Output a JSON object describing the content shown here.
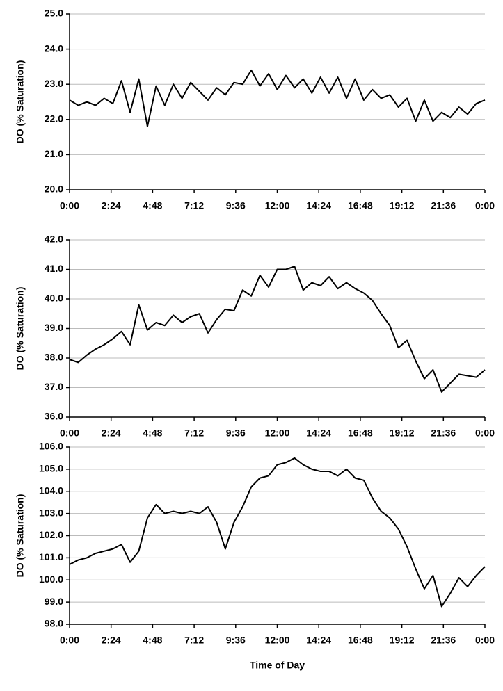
{
  "chart_data": [
    {
      "type": "line",
      "ylabel": "DO (% Saturation)",
      "color": "#000000",
      "grid": true,
      "x": [
        0,
        30,
        60,
        90,
        120,
        150,
        180,
        210,
        240,
        270,
        300,
        330,
        360,
        390,
        420,
        450,
        480,
        510,
        540,
        570,
        600,
        630,
        660,
        690,
        720,
        750,
        780,
        810,
        840,
        870,
        900,
        930,
        960,
        990,
        1020,
        1050,
        1080,
        1110,
        1140,
        1170,
        1200,
        1230,
        1260,
        1290,
        1320,
        1350,
        1380,
        1410,
        1440
      ],
      "values": [
        22.55,
        22.4,
        22.5,
        22.4,
        22.6,
        22.45,
        23.1,
        22.2,
        23.15,
        21.8,
        22.95,
        22.4,
        23.0,
        22.6,
        23.05,
        22.8,
        22.55,
        22.9,
        22.7,
        23.05,
        23.0,
        23.4,
        22.95,
        23.3,
        22.85,
        23.25,
        22.9,
        23.15,
        22.75,
        23.2,
        22.75,
        23.2,
        22.6,
        23.15,
        22.55,
        22.85,
        22.6,
        22.7,
        22.35,
        22.6,
        21.95,
        22.55,
        21.95,
        22.2,
        22.05,
        22.35,
        22.15,
        22.45,
        22.55
      ],
      "xlim": [
        0,
        1440
      ],
      "xticks": [
        {
          "value": 0,
          "label": "0:00"
        },
        {
          "value": 144,
          "label": "2:24"
        },
        {
          "value": 288,
          "label": "4:48"
        },
        {
          "value": 432,
          "label": "7:12"
        },
        {
          "value": 576,
          "label": "9:36"
        },
        {
          "value": 720,
          "label": "12:00"
        },
        {
          "value": 864,
          "label": "14:24"
        },
        {
          "value": 1008,
          "label": "16:48"
        },
        {
          "value": 1152,
          "label": "19:12"
        },
        {
          "value": 1296,
          "label": "21:36"
        },
        {
          "value": 1440,
          "label": "0:00"
        }
      ],
      "ylim": [
        20,
        25
      ],
      "yticks": [
        {
          "value": 20,
          "label": "20.0"
        },
        {
          "value": 21,
          "label": "21.0"
        },
        {
          "value": 22,
          "label": "22.0"
        },
        {
          "value": 23,
          "label": "23.0"
        },
        {
          "value": 24,
          "label": "24.0"
        },
        {
          "value": 25,
          "label": "25.0"
        }
      ]
    },
    {
      "type": "line",
      "ylabel": "DO (% Saturation)",
      "color": "#000000",
      "grid": true,
      "x": [
        0,
        30,
        60,
        90,
        120,
        150,
        180,
        210,
        240,
        270,
        300,
        330,
        360,
        390,
        420,
        450,
        480,
        510,
        540,
        570,
        600,
        630,
        660,
        690,
        720,
        750,
        780,
        810,
        840,
        870,
        900,
        930,
        960,
        990,
        1020,
        1050,
        1080,
        1110,
        1140,
        1170,
        1200,
        1230,
        1260,
        1290,
        1320,
        1350,
        1380,
        1410,
        1440
      ],
      "values": [
        37.95,
        37.85,
        38.1,
        38.3,
        38.45,
        38.65,
        38.9,
        38.45,
        39.8,
        38.95,
        39.2,
        39.1,
        39.45,
        39.2,
        39.4,
        39.5,
        38.85,
        39.3,
        39.65,
        39.6,
        40.3,
        40.1,
        40.8,
        40.4,
        41.0,
        41.0,
        41.1,
        40.3,
        40.55,
        40.45,
        40.75,
        40.35,
        40.55,
        40.35,
        40.2,
        39.95,
        39.5,
        39.1,
        38.35,
        38.6,
        37.9,
        37.3,
        37.6,
        36.85,
        37.15,
        37.45,
        37.4,
        37.35,
        37.6
      ],
      "xlim": [
        0,
        1440
      ],
      "xticks": [
        {
          "value": 0,
          "label": "0:00"
        },
        {
          "value": 144,
          "label": "2:24"
        },
        {
          "value": 288,
          "label": "4:48"
        },
        {
          "value": 432,
          "label": "7:12"
        },
        {
          "value": 576,
          "label": "9:36"
        },
        {
          "value": 720,
          "label": "12:00"
        },
        {
          "value": 864,
          "label": "14:24"
        },
        {
          "value": 1008,
          "label": "16:48"
        },
        {
          "value": 1152,
          "label": "19:12"
        },
        {
          "value": 1296,
          "label": "21:36"
        },
        {
          "value": 1440,
          "label": "0:00"
        }
      ],
      "ylim": [
        36,
        42
      ],
      "yticks": [
        {
          "value": 36,
          "label": "36.0"
        },
        {
          "value": 37,
          "label": "37.0"
        },
        {
          "value": 38,
          "label": "38.0"
        },
        {
          "value": 39,
          "label": "39.0"
        },
        {
          "value": 40,
          "label": "40.0"
        },
        {
          "value": 41,
          "label": "41.0"
        },
        {
          "value": 42,
          "label": "42.0"
        }
      ]
    },
    {
      "type": "line",
      "ylabel": "DO (% Saturation)",
      "xlabel": "Time of Day",
      "color": "#000000",
      "grid": true,
      "x": [
        0,
        30,
        60,
        90,
        120,
        150,
        180,
        210,
        240,
        270,
        300,
        330,
        360,
        390,
        420,
        450,
        480,
        510,
        540,
        570,
        600,
        630,
        660,
        690,
        720,
        750,
        780,
        810,
        840,
        870,
        900,
        930,
        960,
        990,
        1020,
        1050,
        1080,
        1110,
        1140,
        1170,
        1200,
        1230,
        1260,
        1290,
        1320,
        1350,
        1380,
        1410,
        1440
      ],
      "values": [
        100.7,
        100.9,
        101.0,
        101.2,
        101.3,
        101.4,
        101.6,
        100.8,
        101.3,
        102.8,
        103.4,
        103.0,
        103.1,
        103.0,
        103.1,
        103.0,
        103.3,
        102.6,
        101.4,
        102.6,
        103.3,
        104.2,
        104.6,
        104.7,
        105.2,
        105.3,
        105.5,
        105.2,
        105.0,
        104.9,
        104.9,
        104.7,
        105.0,
        104.6,
        104.5,
        103.7,
        103.1,
        102.8,
        102.3,
        101.5,
        100.5,
        99.6,
        100.2,
        98.8,
        99.4,
        100.1,
        99.7,
        100.2,
        100.6
      ],
      "xlim": [
        0,
        1440
      ],
      "xticks": [
        {
          "value": 0,
          "label": "0:00"
        },
        {
          "value": 144,
          "label": "2:24"
        },
        {
          "value": 288,
          "label": "4:48"
        },
        {
          "value": 432,
          "label": "7:12"
        },
        {
          "value": 576,
          "label": "9:36"
        },
        {
          "value": 720,
          "label": "12:00"
        },
        {
          "value": 864,
          "label": "14:24"
        },
        {
          "value": 1008,
          "label": "16:48"
        },
        {
          "value": 1152,
          "label": "19:12"
        },
        {
          "value": 1296,
          "label": "21:36"
        },
        {
          "value": 1440,
          "label": "0:00"
        }
      ],
      "ylim": [
        98,
        106
      ],
      "yticks": [
        {
          "value": 98,
          "label": "98.0"
        },
        {
          "value": 99,
          "label": "99.0"
        },
        {
          "value": 100,
          "label": "100.0"
        },
        {
          "value": 101,
          "label": "101.0"
        },
        {
          "value": 102,
          "label": "102.0"
        },
        {
          "value": 103,
          "label": "103.0"
        },
        {
          "value": 104,
          "label": "104.0"
        },
        {
          "value": 105,
          "label": "105.0"
        },
        {
          "value": 106,
          "label": "106.0"
        }
      ]
    }
  ]
}
